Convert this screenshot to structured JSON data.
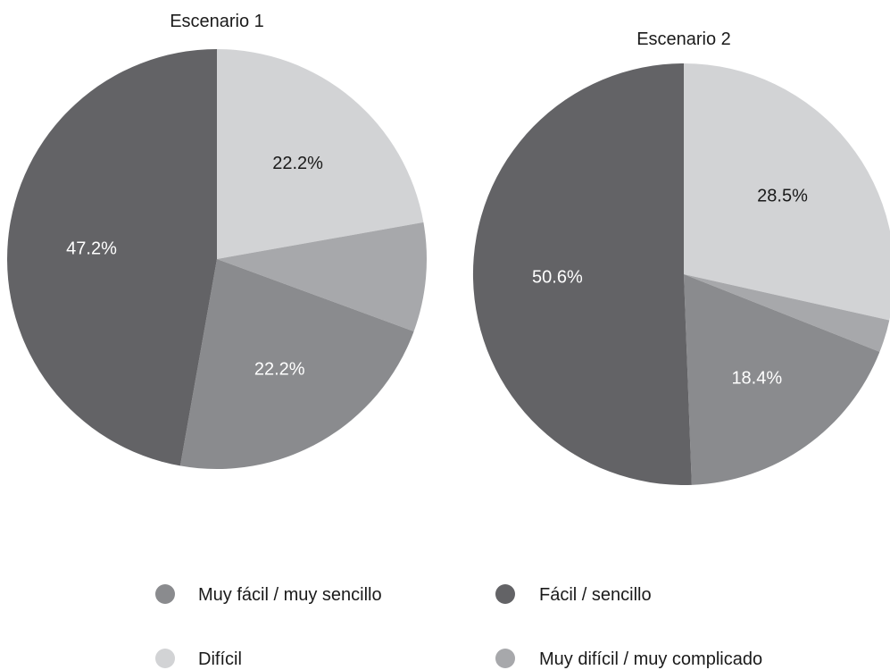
{
  "legend": [
    {
      "key": "muy_facil",
      "label": "Muy fácil / muy sencillo",
      "color": "#8a8b8e"
    },
    {
      "key": "facil",
      "label": "Fácil / sencillo",
      "color": "#636366"
    },
    {
      "key": "dificil",
      "label": "Difícil",
      "color": "#d2d3d5"
    },
    {
      "key": "muy_dificil",
      "label": "Muy difícil / muy complicado",
      "color": "#a7a8ab"
    }
  ],
  "chart_data": [
    {
      "type": "pie",
      "title": "Escenario 1",
      "slices": [
        {
          "key": "dificil",
          "value": 22.2,
          "label": "22.2%",
          "label_color": "#1a1a1a"
        },
        {
          "key": "muy_dificil",
          "value": 8.4,
          "label": "",
          "label_color": "#1a1a1a"
        },
        {
          "key": "muy_facil",
          "value": 22.2,
          "label": "22.2%",
          "label_color": "#ffffff"
        },
        {
          "key": "facil",
          "value": 47.2,
          "label": "47.2%",
          "label_color": "#ffffff"
        }
      ]
    },
    {
      "type": "pie",
      "title": "Escenario 2",
      "slices": [
        {
          "key": "dificil",
          "value": 28.5,
          "label": "28.5%",
          "label_color": "#1a1a1a"
        },
        {
          "key": "muy_dificil",
          "value": 2.5,
          "label": "",
          "label_color": "#1a1a1a"
        },
        {
          "key": "muy_facil",
          "value": 18.4,
          "label": "18.4%",
          "label_color": "#ffffff"
        },
        {
          "key": "facil",
          "value": 50.6,
          "label": "50.6%",
          "label_color": "#ffffff"
        }
      ]
    }
  ]
}
